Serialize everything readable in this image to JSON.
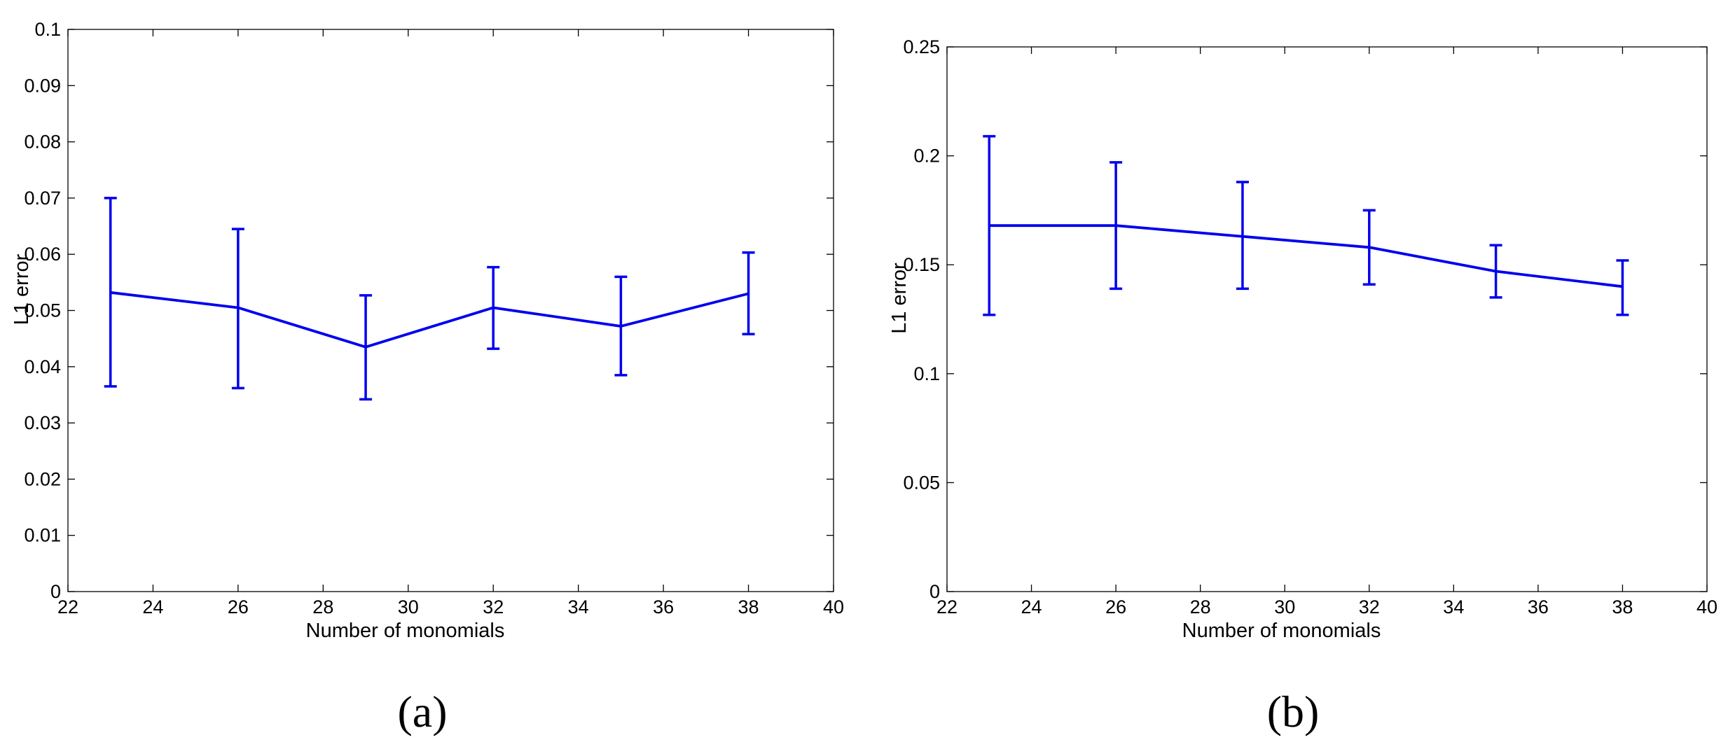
{
  "chart_data": [
    {
      "type": "line",
      "caption": "(a)",
      "xlabel": "Number of monomials",
      "ylabel": "L1 error",
      "xlim": [
        22,
        40
      ],
      "ylim": [
        0,
        0.1
      ],
      "xticks": [
        "22",
        "24",
        "26",
        "28",
        "30",
        "32",
        "34",
        "36",
        "38",
        "40"
      ],
      "yticks": [
        "0",
        "0.01",
        "0.02",
        "0.03",
        "0.04",
        "0.05",
        "0.06",
        "0.07",
        "0.08",
        "0.09",
        "0.1"
      ],
      "grid": false,
      "color": "#0000ee",
      "series": [
        {
          "x": [
            23,
            26,
            29,
            32,
            35,
            38
          ],
          "y": [
            0.0532,
            0.0505,
            0.0435,
            0.0505,
            0.0472,
            0.053
          ],
          "error_low": [
            0.0365,
            0.0362,
            0.0342,
            0.0432,
            0.0385,
            0.0458
          ],
          "error_high": [
            0.07,
            0.0645,
            0.0527,
            0.0577,
            0.056,
            0.0603
          ]
        }
      ]
    },
    {
      "type": "line",
      "caption": "(b)",
      "xlabel": "Number of monomials",
      "ylabel": "L1 error",
      "xlim": [
        22,
        40
      ],
      "ylim": [
        0,
        0.25
      ],
      "xticks": [
        "22",
        "24",
        "26",
        "28",
        "30",
        "32",
        "34",
        "36",
        "38",
        "40"
      ],
      "yticks": [
        "0",
        "0.05",
        "0.1",
        "0.15",
        "0.2",
        "0.25"
      ],
      "grid": false,
      "color": "#0000ee",
      "series": [
        {
          "x": [
            23,
            26,
            29,
            32,
            35,
            38
          ],
          "y": [
            0.168,
            0.168,
            0.163,
            0.158,
            0.147,
            0.14
          ],
          "error_low": [
            0.127,
            0.139,
            0.139,
            0.141,
            0.135,
            0.127
          ],
          "error_high": [
            0.209,
            0.197,
            0.188,
            0.175,
            0.159,
            0.152
          ]
        }
      ]
    }
  ]
}
